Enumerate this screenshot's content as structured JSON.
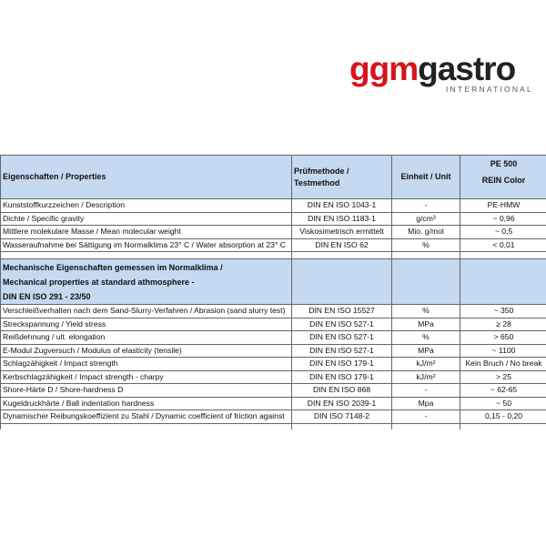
{
  "logo": {
    "part1": "ggm",
    "part2": "gastro",
    "sub": "INTERNATIONAL",
    "brand_color": "#d7141d"
  },
  "header": {
    "property": "Eigenschaften / Properties",
    "method_line1": "Prüfmethode /",
    "method_line2": "Testmethod",
    "unit": "Einheit / Unit",
    "product_line1": "PE 500",
    "product_line2": "REIN Color",
    "header_bg": "#c5d9f1"
  },
  "rows": [
    {
      "property": "Kunststoffkurzzeichen / Description",
      "method": "DIN EN ISO 1043-1",
      "unit": "-",
      "value": "PE-HMW"
    },
    {
      "property": "Dichte / Specific gravity",
      "method": "DIN EN ISO 1183-1",
      "unit": "g/cm³",
      "value": "~ 0,96"
    },
    {
      "property": "Mittlere molekulare Masse / Mean molecular weight",
      "method": "Viskosimetrisch ermittelt",
      "unit": "Mio. g/mol",
      "value": "~ 0,5"
    },
    {
      "property": "Wasseraufnahme bei Sättigung im Normalklima 23° C / Water absorption at 23° C",
      "method": "DIN EN ISO 62",
      "unit": "%",
      "value": "< 0,01"
    }
  ],
  "section": {
    "line1": "Mechanische Eigenschaften gemessen im Normalklima /",
    "line2": "Mechanical properties at standard athmosphere -",
    "line3": "DIN EN ISO 291 - 23/50"
  },
  "mech_rows": [
    {
      "property": "Verschleißverhalten nach dem Sand-Slurry-Verfahren / Abrasion (sand slurry test)",
      "method": "DIN EN ISO 15527",
      "unit": "%",
      "value": "~ 350"
    },
    {
      "property": "Streckspannung / Yield stress",
      "method": "DIN EN ISO 527-1",
      "unit": "MPa",
      "value": "≥ 28"
    },
    {
      "property": "Reißdehnung / ult. elongation",
      "method": "DIN EN ISO 527-1",
      "unit": "%",
      "value": "> 650"
    },
    {
      "property": "E-Modul Zugversuch / Modulus of elasticity (tensile)",
      "method": "DIN EN ISO 527-1",
      "unit": "MPa",
      "value": "~ 1100"
    },
    {
      "property": "Schlagzähigkeit / Impact strength",
      "method": "DIN EN ISO 179-1",
      "unit": "kJ/m²",
      "value": "Kein Bruch / No break"
    },
    {
      "property": "Kerbschlagzähigkeit / Impact strength - charpy",
      "method": "DIN EN ISO 179-1",
      "unit": "kJ/m²",
      "value": "> 25"
    },
    {
      "property": "Shore-Härte D / Shore-hardness D",
      "method": "DIN EN ISO 868",
      "unit": "-",
      "value": "~ 62-65"
    },
    {
      "property": "Kugeldruckhärte / Ball indentation hardness",
      "method": "DIN EN ISO 2039-1",
      "unit": "Mpa",
      "value": "~ 50"
    },
    {
      "property": "Dynamischer Reibungskoeffizient zu Stahl / Dynamic coefficient of friction against",
      "method": "DIN ISO 7148-2",
      "unit": "-",
      "value": "0,15 - 0,20"
    }
  ]
}
